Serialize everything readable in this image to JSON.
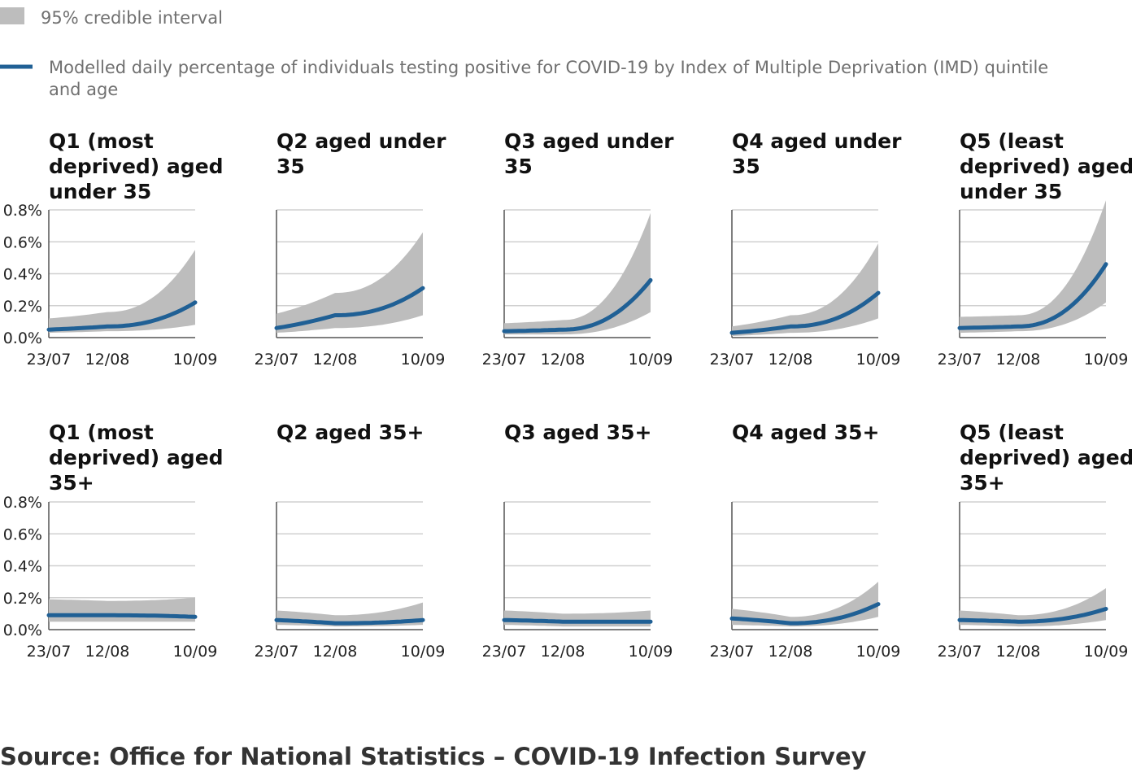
{
  "legend": {
    "interval_label": "95% credible interval",
    "line_label_line1": "Modelled daily percentage of individuals testing positive for COVID-19 by Index of Multiple Deprivation (IMD) quintile",
    "line_label_line2": "and age",
    "interval_color": "#bdbdbd",
    "line_color": "#206095"
  },
  "source": "Source: Office for National Statistics – COVID-19 Infection Survey",
  "chart_data": [
    {
      "type": "line",
      "title_lines": [
        "Q1 (most",
        "deprived) aged",
        "under 35"
      ],
      "x": [
        "23/07",
        "12/08",
        "10/09"
      ],
      "ylim": [
        0,
        0.8
      ],
      "yticks": [
        "0.0%",
        "0.2%",
        "0.4%",
        "0.6%",
        "0.8%"
      ],
      "series": [
        {
          "values": [
            0.05,
            0.07,
            0.22
          ],
          "lower": [
            0.03,
            0.04,
            0.08
          ],
          "upper": [
            0.12,
            0.16,
            0.55
          ]
        }
      ]
    },
    {
      "type": "line",
      "title_lines": [
        "Q2 aged under",
        "35"
      ],
      "x": [
        "23/07",
        "12/08",
        "10/09"
      ],
      "ylim": [
        0,
        0.8
      ],
      "yticks": [
        "0.0%",
        "0.2%",
        "0.4%",
        "0.6%",
        "0.8%"
      ],
      "series": [
        {
          "values": [
            0.06,
            0.14,
            0.31
          ],
          "lower": [
            0.03,
            0.06,
            0.14
          ],
          "upper": [
            0.15,
            0.28,
            0.66
          ]
        }
      ]
    },
    {
      "type": "line",
      "title_lines": [
        "Q3 aged under",
        "35"
      ],
      "x": [
        "23/07",
        "12/08",
        "10/09"
      ],
      "ylim": [
        0,
        0.8
      ],
      "yticks": [
        "0.0%",
        "0.2%",
        "0.4%",
        "0.6%",
        "0.8%"
      ],
      "series": [
        {
          "values": [
            0.04,
            0.05,
            0.36
          ],
          "lower": [
            0.02,
            0.02,
            0.16
          ],
          "upper": [
            0.09,
            0.11,
            0.78
          ]
        }
      ]
    },
    {
      "type": "line",
      "title_lines": [
        "Q4 aged under",
        "35"
      ],
      "x": [
        "23/07",
        "12/08",
        "10/09"
      ],
      "ylim": [
        0,
        0.8
      ],
      "yticks": [
        "0.0%",
        "0.2%",
        "0.4%",
        "0.6%",
        "0.8%"
      ],
      "series": [
        {
          "values": [
            0.03,
            0.07,
            0.28
          ],
          "lower": [
            0.01,
            0.03,
            0.12
          ],
          "upper": [
            0.07,
            0.14,
            0.59
          ]
        }
      ]
    },
    {
      "type": "line",
      "title_lines": [
        "Q5 (least",
        "deprived) aged",
        "under 35"
      ],
      "x": [
        "23/07",
        "12/08",
        "10/09"
      ],
      "ylim": [
        0,
        0.8
      ],
      "yticks": [
        "0.0%",
        "0.2%",
        "0.4%",
        "0.6%",
        "0.8%"
      ],
      "series": [
        {
          "values": [
            0.06,
            0.07,
            0.46
          ],
          "lower": [
            0.03,
            0.04,
            0.22
          ],
          "upper": [
            0.13,
            0.14,
            0.86
          ]
        }
      ]
    },
    {
      "type": "line",
      "title_lines": [
        "Q1 (most",
        "deprived) aged",
        "35+"
      ],
      "x": [
        "23/07",
        "12/08",
        "10/09"
      ],
      "ylim": [
        0,
        0.8
      ],
      "yticks": [
        "0.0%",
        "0.2%",
        "0.4%",
        "0.6%",
        "0.8%"
      ],
      "series": [
        {
          "values": [
            0.09,
            0.09,
            0.08
          ],
          "lower": [
            0.05,
            0.05,
            0.05
          ],
          "upper": [
            0.19,
            0.18,
            0.2
          ]
        }
      ]
    },
    {
      "type": "line",
      "title_lines": [
        "Q2 aged 35+"
      ],
      "x": [
        "23/07",
        "12/08",
        "10/09"
      ],
      "ylim": [
        0,
        0.8
      ],
      "yticks": [
        "0.0%",
        "0.2%",
        "0.4%",
        "0.6%",
        "0.8%"
      ],
      "series": [
        {
          "values": [
            0.06,
            0.04,
            0.06
          ],
          "lower": [
            0.03,
            0.02,
            0.03
          ],
          "upper": [
            0.12,
            0.09,
            0.17
          ]
        }
      ]
    },
    {
      "type": "line",
      "title_lines": [
        "Q3 aged 35+"
      ],
      "x": [
        "23/07",
        "12/08",
        "10/09"
      ],
      "ylim": [
        0,
        0.8
      ],
      "yticks": [
        "0.0%",
        "0.2%",
        "0.4%",
        "0.6%",
        "0.8%"
      ],
      "series": [
        {
          "values": [
            0.06,
            0.05,
            0.05
          ],
          "lower": [
            0.03,
            0.02,
            0.02
          ],
          "upper": [
            0.12,
            0.1,
            0.12
          ]
        }
      ]
    },
    {
      "type": "line",
      "title_lines": [
        "Q4 aged 35+"
      ],
      "x": [
        "23/07",
        "12/08",
        "10/09"
      ],
      "ylim": [
        0,
        0.8
      ],
      "yticks": [
        "0.0%",
        "0.2%",
        "0.4%",
        "0.6%",
        "0.8%"
      ],
      "series": [
        {
          "values": [
            0.07,
            0.04,
            0.16
          ],
          "lower": [
            0.03,
            0.02,
            0.08
          ],
          "upper": [
            0.13,
            0.08,
            0.3
          ]
        }
      ]
    },
    {
      "type": "line",
      "title_lines": [
        "Q5 (least",
        "deprived) aged",
        "35+"
      ],
      "x": [
        "23/07",
        "12/08",
        "10/09"
      ],
      "ylim": [
        0,
        0.8
      ],
      "yticks": [
        "0.0%",
        "0.2%",
        "0.4%",
        "0.6%",
        "0.8%"
      ],
      "series": [
        {
          "values": [
            0.06,
            0.05,
            0.13
          ],
          "lower": [
            0.03,
            0.02,
            0.06
          ],
          "upper": [
            0.12,
            0.09,
            0.26
          ]
        }
      ]
    }
  ]
}
